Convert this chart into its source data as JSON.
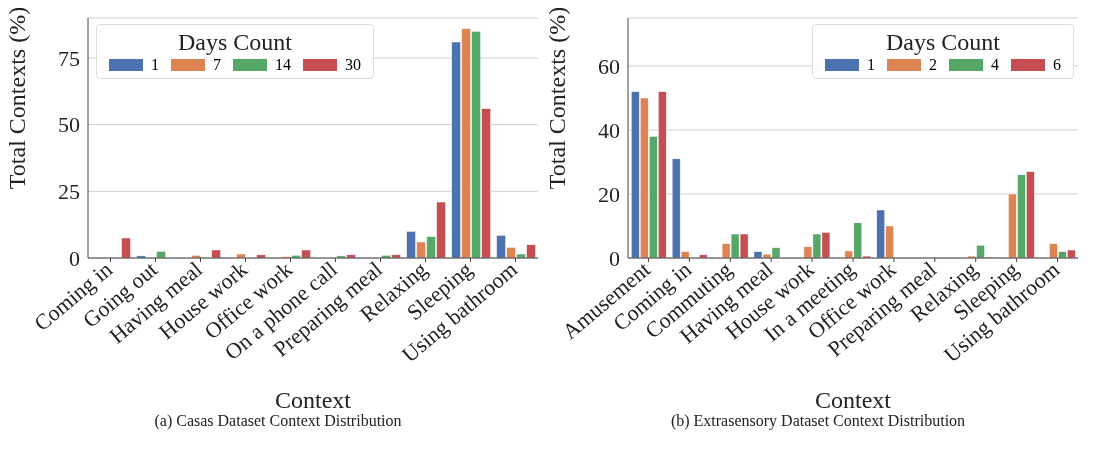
{
  "chart_data": [
    {
      "type": "bar",
      "xlabel": "Context",
      "ylabel": "Total Contexts (%)",
      "legend_title": "Days Count",
      "legend": "top left",
      "grid": "y",
      "categories": [
        "Coming in",
        "Going out",
        "Having meal",
        "House work",
        "Office work",
        "On a phone call",
        "Preparing meal",
        "Relaxing",
        "Sleeping",
        "Using bathroom"
      ],
      "series": [
        {
          "name": "1",
          "color": "#4c72b0",
          "values": [
            0,
            0.8,
            0,
            0,
            0,
            0,
            0,
            10,
            81,
            8.5
          ]
        },
        {
          "name": "7",
          "color": "#dd8452",
          "values": [
            0,
            0,
            1,
            1.5,
            0.5,
            0,
            0,
            6,
            86,
            4
          ]
        },
        {
          "name": "14",
          "color": "#55a868",
          "values": [
            0,
            2.5,
            0,
            0,
            1,
            0.8,
            1,
            8,
            85,
            1.5
          ]
        },
        {
          "name": "30",
          "color": "#c44e52",
          "values": [
            7.5,
            0,
            3,
            1.2,
            3,
            1.2,
            1.2,
            21,
            56,
            5
          ]
        }
      ],
      "ylim": [
        0,
        90
      ],
      "yticks": [
        0,
        25,
        50,
        75
      ],
      "annotations": [
        "(a)  Casas Dataset Context Distribution"
      ]
    },
    {
      "type": "bar",
      "xlabel": "Context",
      "ylabel": "Total Contexts (%)",
      "legend_title": "Days Count",
      "legend": "top right",
      "grid": "y",
      "categories": [
        "Amusement",
        "Coming in",
        "Commuting",
        "Having meal",
        "House work",
        "In a meeting",
        "Office work",
        "Preparing meal",
        "Relaxing",
        "Sleeping",
        "Using bathroom"
      ],
      "series": [
        {
          "name": "1",
          "color": "#4c72b0",
          "values": [
            52,
            31,
            0,
            2,
            0,
            0,
            15,
            0,
            0,
            0,
            0
          ]
        },
        {
          "name": "2",
          "color": "#dd8452",
          "values": [
            50,
            2,
            4.5,
            1.2,
            3.5,
            2.2,
            10,
            0,
            0.6,
            20,
            4.5
          ]
        },
        {
          "name": "4",
          "color": "#55a868",
          "values": [
            38,
            0,
            7.5,
            3.2,
            7.5,
            11,
            0,
            0,
            4,
            26,
            2
          ]
        },
        {
          "name": "6",
          "color": "#c44e52",
          "values": [
            52,
            1,
            7.5,
            0,
            8,
            0.6,
            0,
            0,
            0.3,
            27,
            2.5
          ]
        }
      ],
      "ylim": [
        0,
        75
      ],
      "yticks": [
        0,
        20,
        40,
        60
      ],
      "annotations": [
        "(b)  Extrasensory Dataset Context Distribution"
      ]
    }
  ]
}
